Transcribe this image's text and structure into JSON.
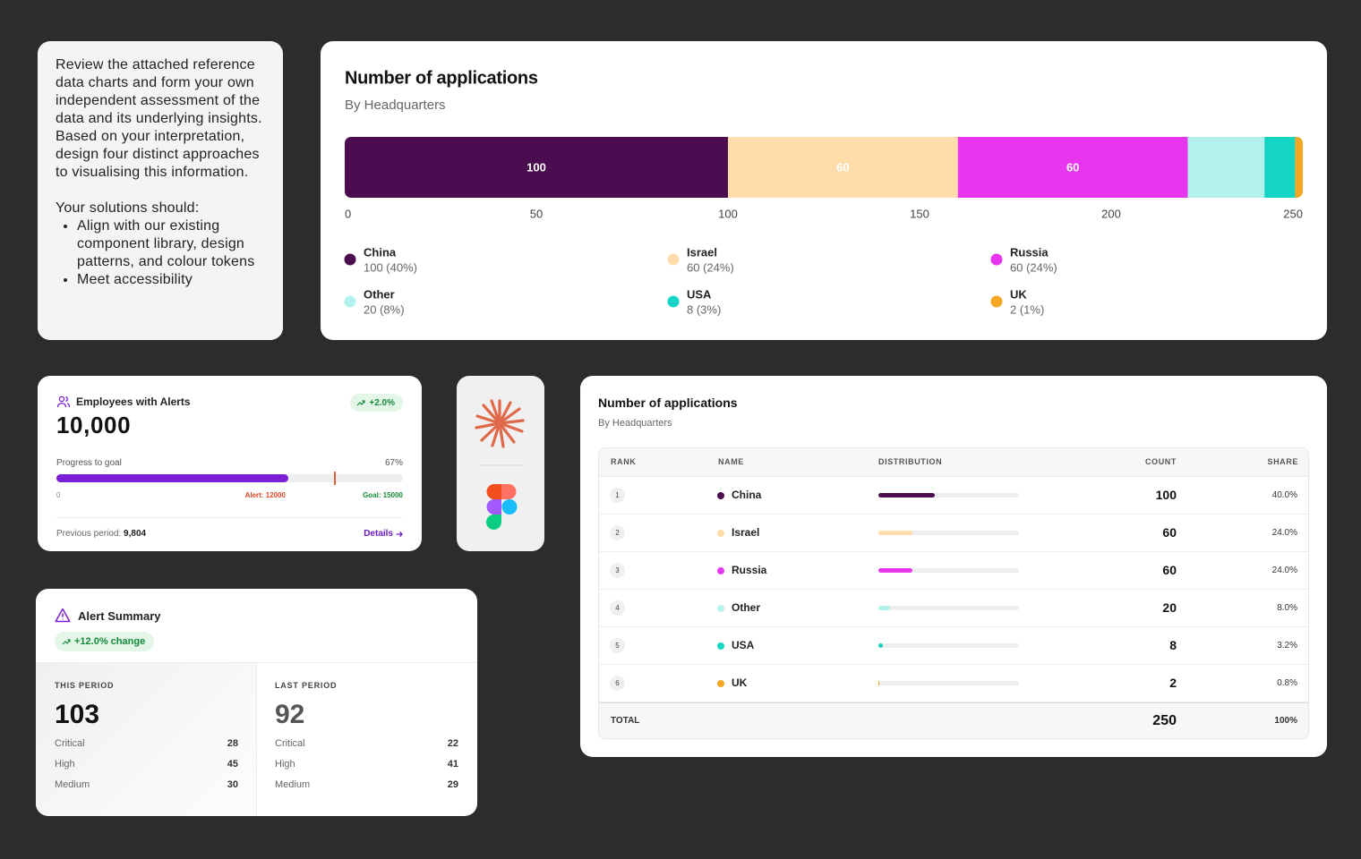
{
  "prompt": {
    "paragraph": "Review the attached reference data charts and form your own independent assessment of the data and its underlying insights. Based on your interpretation, design four distinct approaches to visualising this information.",
    "list_intro": "Your solutions should:",
    "items": [
      "Align with our existing component library, design patterns, and colour tokens",
      "Meet accessibility"
    ]
  },
  "chart_data": {
    "type": "bar",
    "orientation": "horizontal",
    "stacked": true,
    "title": "Number of applications",
    "subtitle": "By Headquarters",
    "series": [
      {
        "name": "China",
        "color": "#4b0d4f",
        "values": [
          100
        ],
        "value_labels": [
          "100 (40%)"
        ]
      },
      {
        "name": "Israel",
        "color": "#ffdcaa",
        "values": [
          60
        ],
        "value_labels": [
          "60 (24%)"
        ]
      },
      {
        "name": "Russia",
        "color": "#e836ee",
        "values": [
          60
        ],
        "value_labels": [
          "60 (24%)"
        ]
      },
      {
        "name": "Other",
        "color": "#b3f1ec",
        "values": [
          20
        ],
        "value_labels": [
          "20 (8%)"
        ]
      },
      {
        "name": "USA",
        "color": "#14d4c4",
        "values": [
          8
        ],
        "value_labels": [
          "8 (3%)"
        ]
      },
      {
        "name": "UK",
        "color": "#f5a623",
        "values": [
          2
        ],
        "value_labels": [
          "2 (1%)"
        ]
      }
    ],
    "xlim": [
      0,
      250
    ],
    "xticks": [
      0,
      50,
      100,
      150,
      200,
      250
    ],
    "grid": false,
    "legend": "bottom"
  },
  "employees_card": {
    "title": "Employees with Alerts",
    "change": "+2.0%",
    "value": "10,000",
    "progress": {
      "label": "Progress to goal",
      "value": 67,
      "value_label": "67%",
      "min": 0,
      "alert": 12000,
      "alert_label": "Alert: 12000",
      "goal": 15000,
      "goal_label": "Goal: 15000"
    },
    "previous_label": "Previous period:",
    "previous_value": "9,804",
    "details": "Details"
  },
  "alert_summary": {
    "title": "Alert Summary",
    "change": "+12.0% change",
    "periods": [
      {
        "label": "THIS PERIOD",
        "total": 103,
        "rows": [
          {
            "label": "Critical",
            "value": 28
          },
          {
            "label": "High",
            "value": 45
          },
          {
            "label": "Medium",
            "value": 30
          }
        ]
      },
      {
        "label": "LAST PERIOD",
        "total": 92,
        "rows": [
          {
            "label": "Critical",
            "value": 22
          },
          {
            "label": "High",
            "value": 41
          },
          {
            "label": "Medium",
            "value": 29
          }
        ]
      }
    ]
  },
  "table_card": {
    "title": "Number of applications",
    "subtitle": "By Headquarters",
    "columns": [
      "RANK",
      "NAME",
      "DISTRIBUTION",
      "COUNT",
      "SHARE"
    ],
    "rows": [
      {
        "rank": 1,
        "name": "China",
        "color": "#4b0d4f",
        "count": 100,
        "share": "40.0%"
      },
      {
        "rank": 2,
        "name": "Israel",
        "color": "#ffdcaa",
        "count": 60,
        "share": "24.0%"
      },
      {
        "rank": 3,
        "name": "Russia",
        "color": "#e836ee",
        "count": 60,
        "share": "24.0%"
      },
      {
        "rank": 4,
        "name": "Other",
        "color": "#b3f1ec",
        "count": 20,
        "share": "8.0%"
      },
      {
        "rank": 5,
        "name": "USA",
        "color": "#14d4c4",
        "count": 8,
        "share": "3.2%"
      },
      {
        "rank": 6,
        "name": "UK",
        "color": "#f5a623",
        "count": 2,
        "share": "0.8%"
      }
    ],
    "total": {
      "label": "TOTAL",
      "count": 250,
      "share": "100%"
    }
  }
}
